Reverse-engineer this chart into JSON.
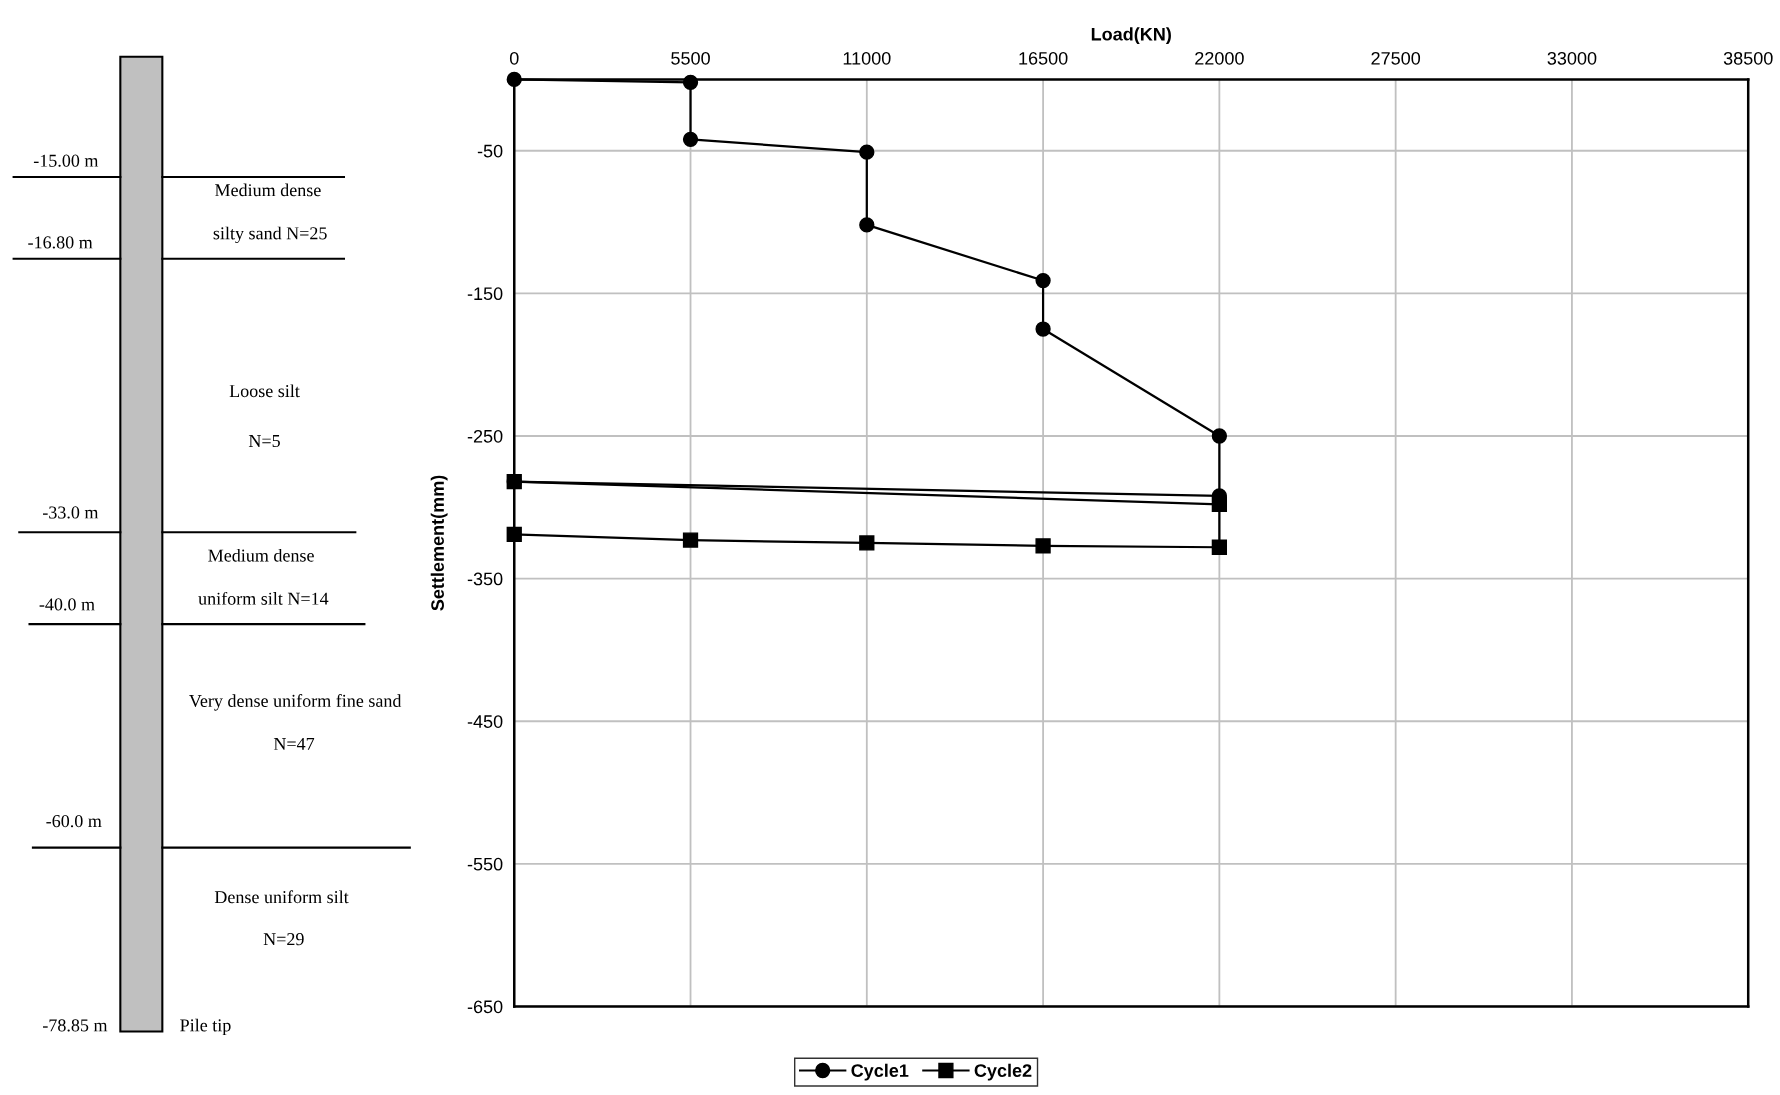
{
  "chart_data": {
    "type": "line",
    "xlabel": "Load(KN)",
    "ylabel": "Settlement(mm)",
    "xlim": [
      0,
      38500
    ],
    "xticks": [
      0,
      5500,
      11000,
      16500,
      22000,
      27500,
      33000,
      38500
    ],
    "ylim": [
      -650,
      0
    ],
    "yticks": [
      -50,
      -150,
      -250,
      -350,
      -450,
      -550,
      -650
    ],
    "grid": true,
    "legend": "bottom",
    "line_style": "solid",
    "series": [
      {
        "name": "Cycle1",
        "color": "#000000",
        "marker": "circle",
        "x": [
          0,
          5500,
          5500,
          11000,
          11000,
          16500,
          16500,
          22000,
          22000,
          0
        ],
        "values": [
          0,
          -2,
          -42,
          -51,
          -102,
          -141,
          -175,
          -250,
          -292,
          -282
        ]
      },
      {
        "name": "Cycle2",
        "color": "#000000",
        "marker": "square",
        "x": [
          0,
          22000,
          22000,
          16500,
          11000,
          5500,
          0
        ],
        "values": [
          -282,
          -298,
          -328,
          -327,
          -325,
          -323,
          -319
        ]
      }
    ],
    "annotations": [
      "-15.00 m",
      "Medium dense",
      "silty sand N=25",
      "-16.80 m",
      "Loose silt",
      "N=5",
      "-33.0 m",
      "Medium dense",
      "uniform silt N=14",
      "-40.0 m",
      "Very dense uniform fine sand",
      "N=47",
      "-60.0 m",
      "Dense uniform silt",
      "N=29",
      "-78.85 m",
      "Pile tip"
    ]
  }
}
